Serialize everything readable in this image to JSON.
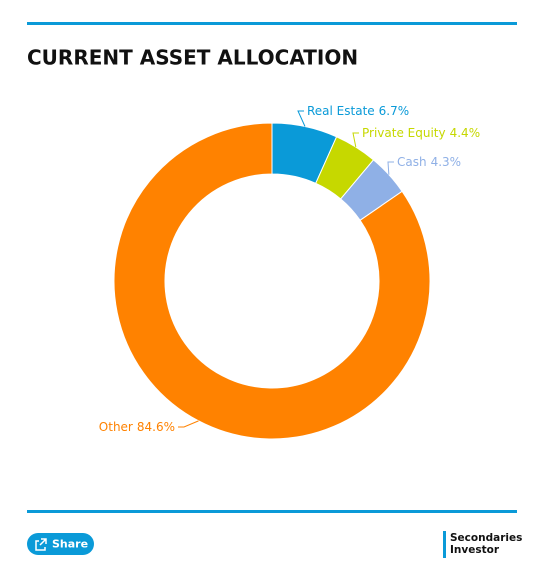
{
  "chart_data": {
    "type": "donut",
    "title": "CURRENT ASSET ALLOCATION",
    "categories": [
      "Real Estate",
      "Private Equity",
      "Cash",
      "Other"
    ],
    "values": [
      6.7,
      4.4,
      4.3,
      84.6
    ],
    "value_labels": [
      "6.7%",
      "4.4%",
      "4.3%",
      "84.6%"
    ],
    "colors": [
      "#0a9ad8",
      "#c6d800",
      "#8fb0e6",
      "#ff8200"
    ]
  },
  "footer": {
    "share": "Share",
    "logo": [
      "Secondaries",
      "Investor"
    ]
  }
}
